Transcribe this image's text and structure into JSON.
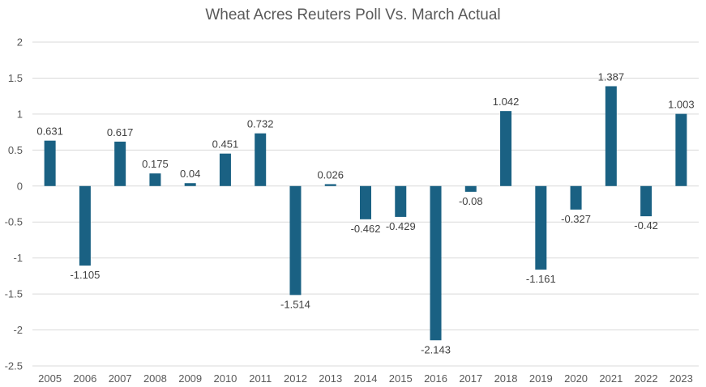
{
  "chart_data": {
    "type": "bar",
    "title": "Wheat Acres Reuters Poll Vs. March Actual",
    "xlabel": "",
    "ylabel": "",
    "categories": [
      "2005",
      "2006",
      "2007",
      "2008",
      "2009",
      "2010",
      "2011",
      "2012",
      "2013",
      "2014",
      "2015",
      "2016",
      "2017",
      "2018",
      "2019",
      "2020",
      "2021",
      "2022",
      "2023"
    ],
    "values": [
      0.631,
      -1.105,
      0.617,
      0.175,
      0.04,
      0.451,
      0.732,
      -1.514,
      0.026,
      -0.462,
      -0.429,
      -2.143,
      -0.08,
      1.042,
      -1.161,
      -0.327,
      1.387,
      -0.42,
      1.003
    ],
    "data_labels": [
      "0.631",
      "-1.105",
      "0.617",
      "0.175",
      "0.04",
      "0.451",
      "0.732",
      "-1.514",
      "0.026",
      "-0.462",
      "-0.429",
      "-2.143",
      "-0.08",
      "1.042",
      "-1.161",
      "-0.327",
      "1.387",
      "-0.42",
      "1.003"
    ],
    "ylim": [
      -2.5,
      2
    ],
    "yticks": [
      2,
      1.5,
      1,
      0.5,
      0,
      -0.5,
      -1,
      -1.5,
      -2,
      -2.5
    ],
    "ytick_labels": [
      "2",
      "1.5",
      "1",
      "0.5",
      "0",
      "-0.5",
      "-1",
      "-1.5",
      "-2",
      "-2.5"
    ],
    "grid": true,
    "legend": "none",
    "bar_color": "#1a6183"
  }
}
